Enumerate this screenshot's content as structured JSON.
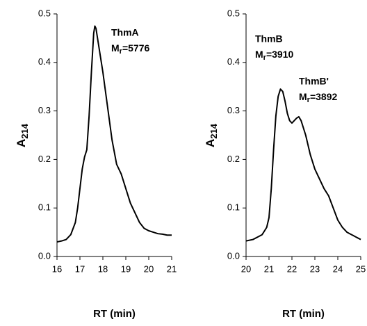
{
  "chart_data": [
    {
      "type": "line",
      "x_label": "RT (min)",
      "y_label": {
        "text": "A",
        "subscript": "214"
      },
      "xlim": [
        16,
        21
      ],
      "xticks": [
        16,
        17,
        18,
        19,
        20,
        21
      ],
      "ylim": [
        0,
        0.5
      ],
      "yticks": [
        {
          "value": 0,
          "label": "0.0"
        },
        0.1,
        0.2,
        0.3,
        0.4,
        0.5
      ],
      "color": "#000000",
      "x": [
        16.0,
        16.2,
        16.4,
        16.6,
        16.8,
        16.9,
        17.0,
        17.1,
        17.2,
        17.3,
        17.4,
        17.5,
        17.6,
        17.65,
        17.7,
        17.8,
        17.9,
        18.0,
        18.2,
        18.4,
        18.6,
        18.8,
        19.0,
        19.2,
        19.4,
        19.6,
        19.8,
        20.0,
        20.2,
        20.4,
        20.6,
        20.8,
        21.0
      ],
      "values": [
        0.03,
        0.032,
        0.035,
        0.045,
        0.07,
        0.1,
        0.14,
        0.18,
        0.205,
        0.22,
        0.29,
        0.38,
        0.46,
        0.475,
        0.47,
        0.44,
        0.41,
        0.38,
        0.31,
        0.24,
        0.19,
        0.17,
        0.14,
        0.11,
        0.09,
        0.07,
        0.058,
        0.053,
        0.05,
        0.047,
        0.046,
        0.044,
        0.044
      ],
      "annotations": [
        {
          "label": "ThmA",
          "mass_symbol": "M",
          "mass_subscript": "r",
          "mass_value": "=5776"
        }
      ]
    },
    {
      "type": "line",
      "x_label": "RT (min)",
      "y_label": {
        "text": "A",
        "subscript": "214"
      },
      "xlim": [
        20,
        25
      ],
      "xticks": [
        20,
        21,
        22,
        23,
        24,
        25
      ],
      "ylim": [
        0,
        0.5
      ],
      "yticks": [
        {
          "value": 0,
          "label": "0.0"
        },
        0.1,
        0.2,
        0.3,
        0.4,
        0.5
      ],
      "color": "#000000",
      "x": [
        20.0,
        20.3,
        20.5,
        20.7,
        20.9,
        21.0,
        21.1,
        21.2,
        21.3,
        21.4,
        21.5,
        21.6,
        21.7,
        21.8,
        21.9,
        22.0,
        22.1,
        22.2,
        22.3,
        22.4,
        22.6,
        22.8,
        23.0,
        23.2,
        23.4,
        23.6,
        23.8,
        24.0,
        24.2,
        24.4,
        24.6,
        24.8,
        25.0
      ],
      "values": [
        0.032,
        0.035,
        0.04,
        0.045,
        0.06,
        0.08,
        0.14,
        0.22,
        0.29,
        0.33,
        0.345,
        0.34,
        0.32,
        0.295,
        0.28,
        0.275,
        0.28,
        0.285,
        0.288,
        0.28,
        0.25,
        0.21,
        0.18,
        0.16,
        0.14,
        0.125,
        0.1,
        0.075,
        0.06,
        0.05,
        0.045,
        0.04,
        0.035
      ],
      "annotations": [
        {
          "label": "ThmB",
          "mass_symbol": "M",
          "mass_subscript": "r",
          "mass_value": "=3910"
        },
        {
          "label": "ThmB'",
          "mass_symbol": "M",
          "mass_subscript": "r",
          "mass_value": "=3892"
        }
      ]
    }
  ]
}
